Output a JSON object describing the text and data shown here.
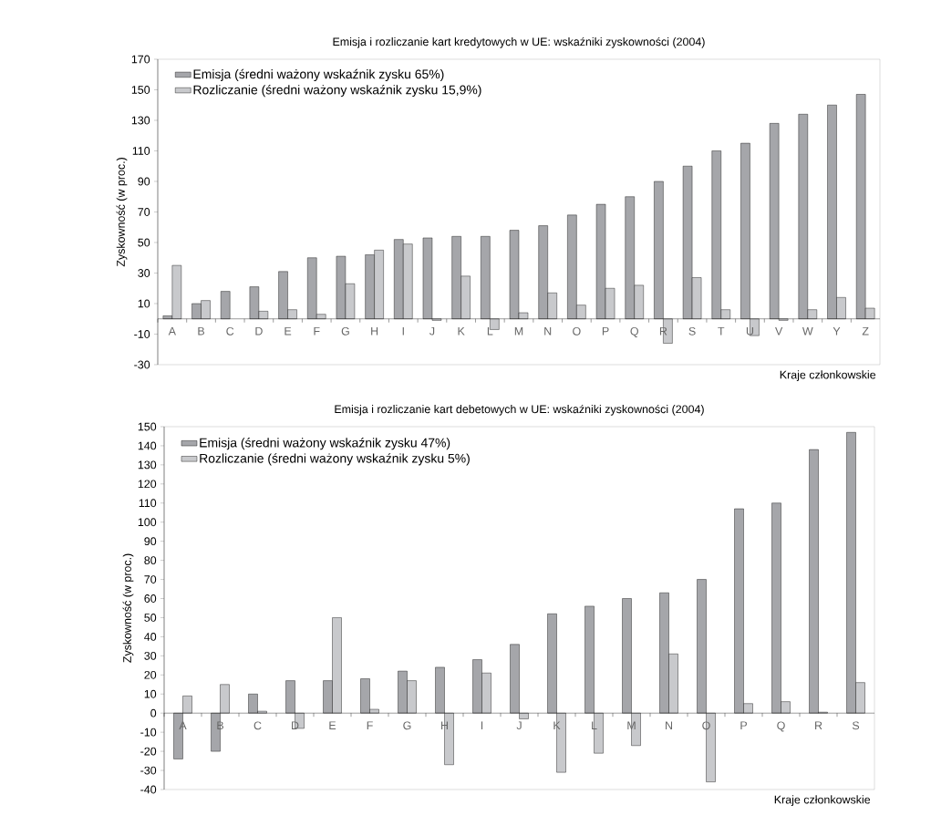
{
  "chart_data": [
    {
      "type": "bar",
      "title": "Emisja i rozliczanie kart kredytowych w UE: wskaźniki zyskowności (2004)",
      "xlabel": "Kraje członkowskie",
      "ylabel": "Zyskowność (w proc.)",
      "categories": [
        "A",
        "B",
        "C",
        "D",
        "E",
        "F",
        "G",
        "H",
        "I",
        "J",
        "K",
        "L",
        "M",
        "N",
        "O",
        "P",
        "Q",
        "R",
        "S",
        "T",
        "U",
        "V",
        "W",
        "Y",
        "Z"
      ],
      "series": [
        {
          "name": "Emisja (średni ważony wskaźnik zysku 65%)",
          "color": "#a5a6aa",
          "values": [
            2,
            10,
            18,
            21,
            31,
            40,
            41,
            42,
            52,
            53,
            54,
            54,
            58,
            61,
            68,
            75,
            80,
            90,
            100,
            110,
            115,
            128,
            134,
            140,
            147
          ]
        },
        {
          "name": "Rozliczanie (średni ważony wskaźnik zysku 15,9%)",
          "color": "#c8c9cc",
          "values": [
            35,
            12,
            null,
            5,
            6,
            3,
            23,
            45,
            49,
            -1,
            28,
            -7,
            4,
            17,
            9,
            20,
            22,
            -16,
            27,
            6,
            -11,
            -1,
            6,
            14,
            7
          ]
        }
      ],
      "ylim": [
        -30,
        170
      ],
      "yticks": [
        -30,
        -10,
        10,
        30,
        50,
        70,
        90,
        110,
        130,
        150,
        170
      ],
      "legend": "top left"
    },
    {
      "type": "bar",
      "title": "Emisja i rozliczanie kart debetowych w UE: wskaźniki zyskowności (2004)",
      "xlabel": "Kraje członkowskie",
      "ylabel": "Zyskowność (w proc.)",
      "categories": [
        "A",
        "B",
        "C",
        "D",
        "E",
        "F",
        "G",
        "H",
        "I",
        "J",
        "K",
        "L",
        "M",
        "N",
        "O",
        "P",
        "Q",
        "R",
        "S"
      ],
      "series": [
        {
          "name": "Emisja (średni ważony wskaźnik zysku 47%)",
          "color": "#a5a6aa",
          "values": [
            -24,
            -20,
            10,
            17,
            17,
            18,
            22,
            24,
            28,
            36,
            52,
            56,
            60,
            63,
            70,
            107,
            110,
            138,
            147
          ]
        },
        {
          "name": "Rozliczanie (średni ważony wskaźnik zysku 5%)",
          "color": "#c8c9cc",
          "values": [
            9,
            15,
            1,
            -8,
            50,
            2,
            17,
            -27,
            21,
            -3,
            -31,
            -21,
            -17,
            31,
            -36,
            5,
            6,
            0.5,
            16
          ]
        }
      ],
      "ylim": [
        -40,
        150
      ],
      "yticks": [
        -40,
        -30,
        -20,
        -10,
        0,
        10,
        20,
        30,
        40,
        50,
        60,
        70,
        80,
        90,
        100,
        110,
        120,
        130,
        140,
        150
      ],
      "legend": "top left"
    }
  ]
}
